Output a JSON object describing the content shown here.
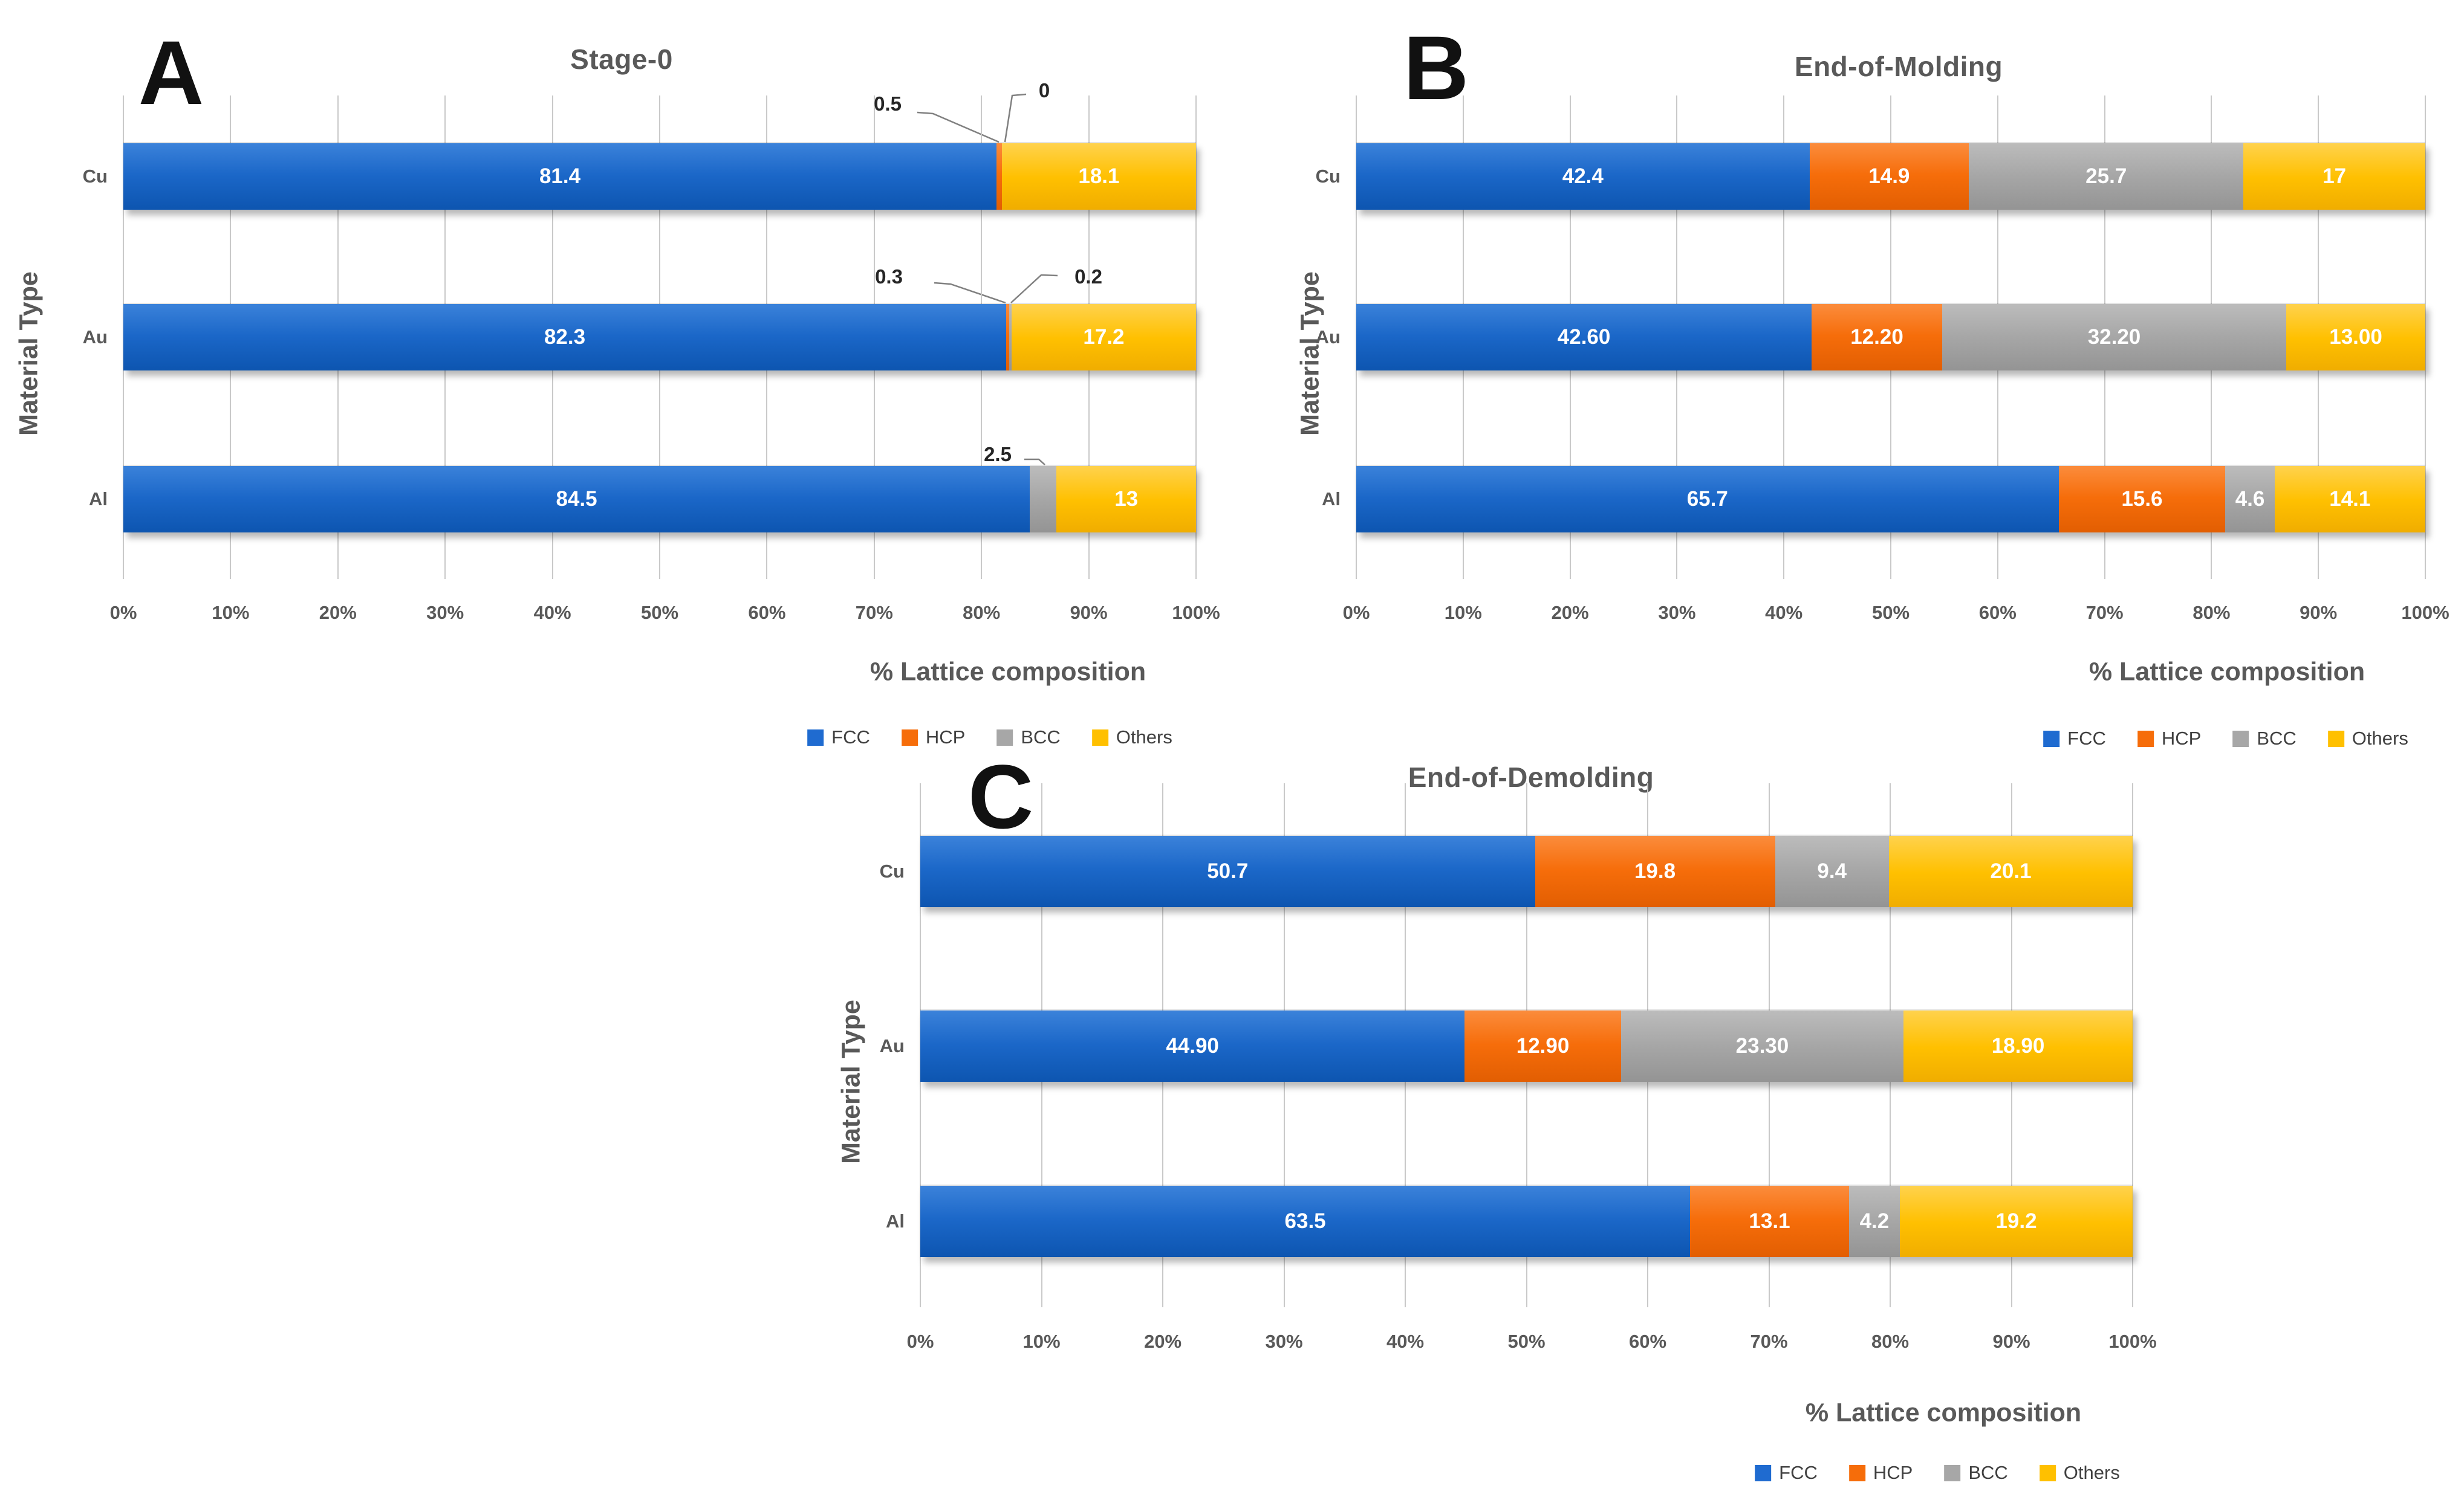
{
  "labels": {
    "xlabel": "% Lattice composition",
    "ylabel": "Material Type"
  },
  "axis_ticks": [
    "0%",
    "10%",
    "20%",
    "30%",
    "40%",
    "50%",
    "60%",
    "70%",
    "80%",
    "90%",
    "100%"
  ],
  "legend": [
    {
      "label": "FCC",
      "color": "#1f6bd0"
    },
    {
      "label": "HCP",
      "color": "#f66d0a"
    },
    {
      "label": "BCC",
      "color": "#a7a7a7"
    },
    {
      "label": "Others",
      "color": "#ffc000"
    }
  ],
  "chart_data": [
    {
      "type": "bar",
      "stacked": true,
      "orientation": "horizontal",
      "panel_label": "A",
      "title": "Stage-0",
      "xlabel": "% Lattice composition",
      "ylabel": "Material Type",
      "xlim": [
        0,
        100
      ],
      "grid": true,
      "legend_position": "bottom",
      "categories": [
        "Cu",
        "Au",
        "Al"
      ],
      "series": [
        {
          "name": "FCC",
          "values": [
            81.4,
            82.3,
            84.5
          ]
        },
        {
          "name": "HCP",
          "values": [
            0.5,
            0.3,
            0
          ]
        },
        {
          "name": "BCC",
          "values": [
            0,
            0.2,
            2.5
          ]
        },
        {
          "name": "Others",
          "values": [
            18.1,
            17.2,
            13
          ]
        }
      ],
      "value_labels": [
        [
          "81.4",
          null,
          null,
          "18.1"
        ],
        [
          "82.3",
          null,
          null,
          "17.2"
        ],
        [
          "84.5",
          null,
          null,
          "13"
        ]
      ],
      "callouts": [
        "0.5",
        "0",
        "0.3",
        "0.2",
        "2.5"
      ]
    },
    {
      "type": "bar",
      "stacked": true,
      "orientation": "horizontal",
      "panel_label": "B",
      "title": "End-of-Molding",
      "xlabel": "% Lattice composition",
      "ylabel": "Material Type",
      "xlim": [
        0,
        100
      ],
      "grid": true,
      "legend_position": "bottom",
      "categories": [
        "Cu",
        "Au",
        "Al"
      ],
      "series": [
        {
          "name": "FCC",
          "values": [
            42.4,
            42.6,
            65.7
          ]
        },
        {
          "name": "HCP",
          "values": [
            14.9,
            12.2,
            15.6
          ]
        },
        {
          "name": "BCC",
          "values": [
            25.7,
            32.2,
            4.6
          ]
        },
        {
          "name": "Others",
          "values": [
            17,
            13,
            14.1
          ]
        }
      ],
      "value_labels": [
        [
          "42.4",
          "14.9",
          "25.7",
          "17"
        ],
        [
          "42.60",
          "12.20",
          "32.20",
          "13.00"
        ],
        [
          "65.7",
          "15.6",
          "4.6",
          "14.1"
        ]
      ],
      "callouts": []
    },
    {
      "type": "bar",
      "stacked": true,
      "orientation": "horizontal",
      "panel_label": "C",
      "title": "End-of-Demolding",
      "xlabel": "% Lattice composition",
      "ylabel": "Material Type",
      "xlim": [
        0,
        100
      ],
      "grid": true,
      "legend_position": "bottom",
      "categories": [
        "Cu",
        "Au",
        "Al"
      ],
      "series": [
        {
          "name": "FCC",
          "values": [
            50.7,
            44.9,
            63.5
          ]
        },
        {
          "name": "HCP",
          "values": [
            19.8,
            12.9,
            13.1
          ]
        },
        {
          "name": "BCC",
          "values": [
            9.4,
            23.3,
            4.2
          ]
        },
        {
          "name": "Others",
          "values": [
            20.1,
            18.9,
            19.2
          ]
        }
      ],
      "value_labels": [
        [
          "50.7",
          "19.8",
          "9.4",
          "20.1"
        ],
        [
          "44.90",
          "12.90",
          "23.30",
          "18.90"
        ],
        [
          "63.5",
          "13.1",
          "4.2",
          "19.2"
        ]
      ],
      "callouts": []
    }
  ]
}
